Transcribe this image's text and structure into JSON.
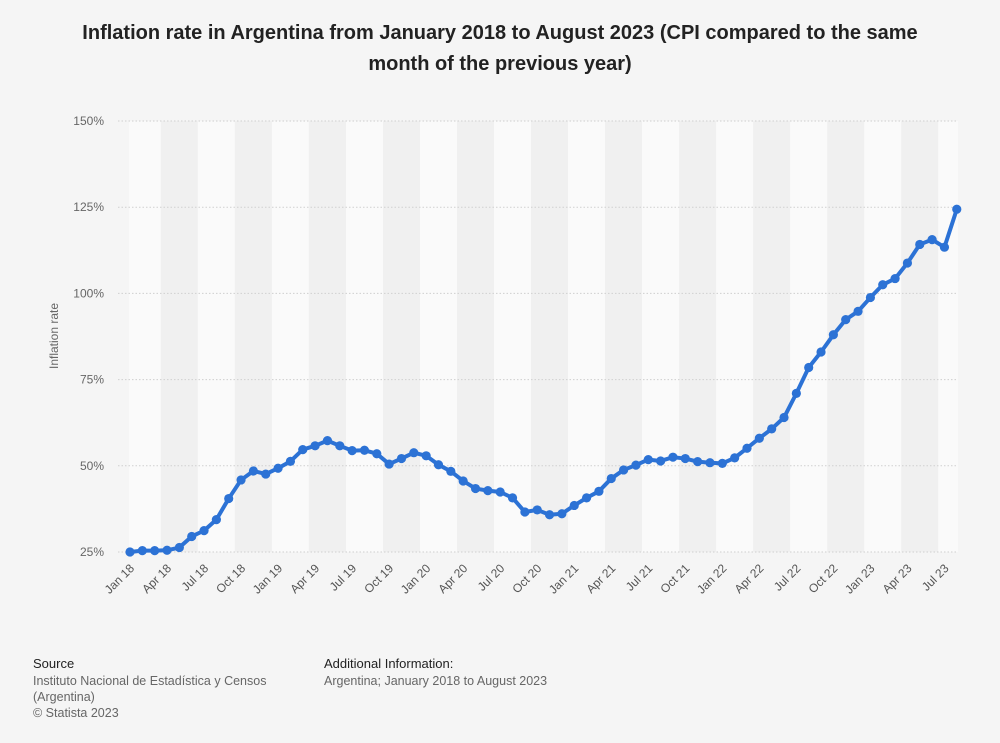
{
  "chart_data": {
    "type": "line",
    "title": "Inflation rate in Argentina from January 2018 to August 2023 (CPI compared to the same month of the previous year)",
    "ylabel": "Inflation rate",
    "xlabel": "",
    "ylim": [
      25,
      150
    ],
    "yticks": [
      "25%",
      "50%",
      "75%",
      "100%",
      "125%",
      "150%"
    ],
    "xtick_labels": [
      "Jan 18",
      "Apr 18",
      "Jul 18",
      "Oct 18",
      "Jan 19",
      "Apr 19",
      "Jul 19",
      "Oct 19",
      "Jan 20",
      "Apr 20",
      "Jul 20",
      "Oct 20",
      "Jan 21",
      "Apr 21",
      "Jul 21",
      "Oct 21",
      "Jan 22",
      "Apr 22",
      "Jul 22",
      "Oct 22",
      "Jan 23",
      "Apr 23",
      "Jul 23"
    ],
    "grid": true,
    "legend": "none",
    "series": [
      {
        "color": "#2c72d5",
        "x": [
          "Jan 2018",
          "Feb 2018",
          "Mar 2018",
          "Apr 2018",
          "May 2018",
          "Jun 2018",
          "Jul 2018",
          "Aug 2018",
          "Sep 2018",
          "Oct 2018",
          "Nov 2018",
          "Dec 2018",
          "Jan 2019",
          "Feb 2019",
          "Mar 2019",
          "Apr 2019",
          "May 2019",
          "Jun 2019",
          "Jul 2019",
          "Aug 2019",
          "Sep 2019",
          "Oct 2019",
          "Nov 2019",
          "Dec 2019",
          "Jan 2020",
          "Feb 2020",
          "Mar 2020",
          "Apr 2020",
          "May 2020",
          "Jun 2020",
          "Jul 2020",
          "Aug 2020",
          "Sep 2020",
          "Oct 2020",
          "Nov 2020",
          "Dec 2020",
          "Jan 2021",
          "Feb 2021",
          "Mar 2021",
          "Apr 2021",
          "May 2021",
          "Jun 2021",
          "Jul 2021",
          "Aug 2021",
          "Sep 2021",
          "Oct 2021",
          "Nov 2021",
          "Dec 2021",
          "Jan 2022",
          "Feb 2022",
          "Mar 2022",
          "Apr 2022",
          "May 2022",
          "Jun 2022",
          "Jul 2022",
          "Aug 2022",
          "Sep 2022",
          "Oct 2022",
          "Nov 2022",
          "Dec 2022",
          "Jan 2023",
          "Feb 2023",
          "Mar 2023",
          "Apr 2023",
          "May 2023",
          "Jun 2023",
          "Jul 2023",
          "Aug 2023"
        ],
        "values": [
          25.0,
          25.4,
          25.4,
          25.5,
          26.3,
          29.5,
          31.2,
          34.4,
          40.5,
          45.9,
          48.5,
          47.6,
          49.3,
          51.3,
          54.7,
          55.8,
          57.3,
          55.8,
          54.4,
          54.5,
          53.5,
          50.5,
          52.1,
          53.8,
          52.9,
          50.3,
          48.4,
          45.6,
          43.4,
          42.8,
          42.4,
          40.7,
          36.6,
          37.2,
          35.8,
          36.1,
          38.5,
          40.7,
          42.6,
          46.3,
          48.8,
          50.2,
          51.8,
          51.4,
          52.5,
          52.1,
          51.2,
          50.9,
          50.7,
          52.3,
          55.1,
          58.0,
          60.7,
          64.0,
          71.0,
          78.5,
          83.0,
          88.0,
          92.4,
          94.8,
          98.8,
          102.5,
          104.3,
          108.8,
          114.2,
          115.6,
          113.4,
          124.4
        ]
      }
    ]
  },
  "footer": {
    "source_heading": "Source",
    "source_line1": "Instituto Nacional de Estadística y Censos",
    "source_line2": "(Argentina)",
    "copyright": "© Statista 2023",
    "info_heading": "Additional Information:",
    "info_text": "Argentina; January 2018 to August 2023"
  }
}
